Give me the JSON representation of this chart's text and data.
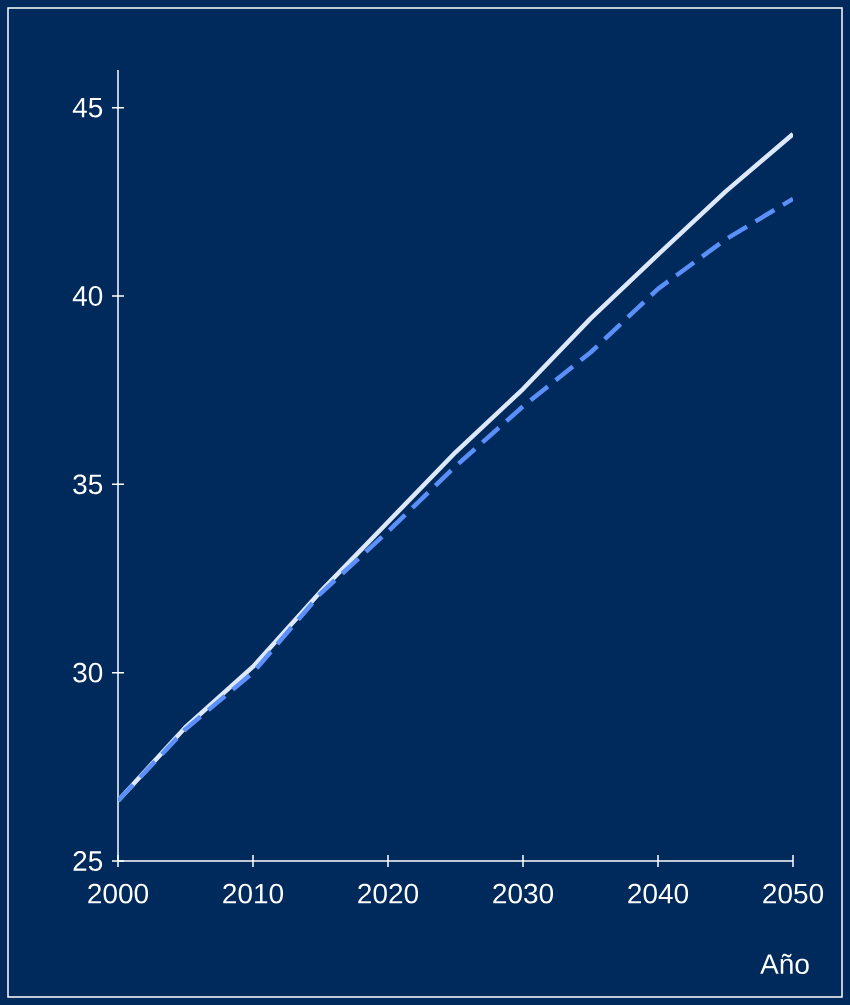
{
  "chart_data": {
    "type": "line",
    "xlabel": "Año",
    "x": [
      2000,
      2005,
      2010,
      2015,
      2020,
      2025,
      2030,
      2035,
      2040,
      2045,
      2050
    ],
    "series": [
      {
        "color": "#dde9fb",
        "line_style": "solid",
        "values": [
          26.6,
          28.55,
          30.16,
          32.15,
          34.0,
          35.85,
          37.53,
          39.4,
          41.1,
          42.77,
          44.3
        ]
      },
      {
        "color": "#5b8ff9",
        "line_style": "dashed",
        "values": [
          26.6,
          28.5,
          30.0,
          32.1,
          33.75,
          35.48,
          37.07,
          38.5,
          40.19,
          41.5,
          42.58
        ]
      }
    ],
    "xlim": [
      2000,
      2050
    ],
    "xticks": [
      2000,
      2010,
      2020,
      2030,
      2040,
      2050
    ],
    "ylim": [
      25,
      46
    ],
    "yticks": [
      25,
      30,
      35,
      40,
      45
    ]
  }
}
